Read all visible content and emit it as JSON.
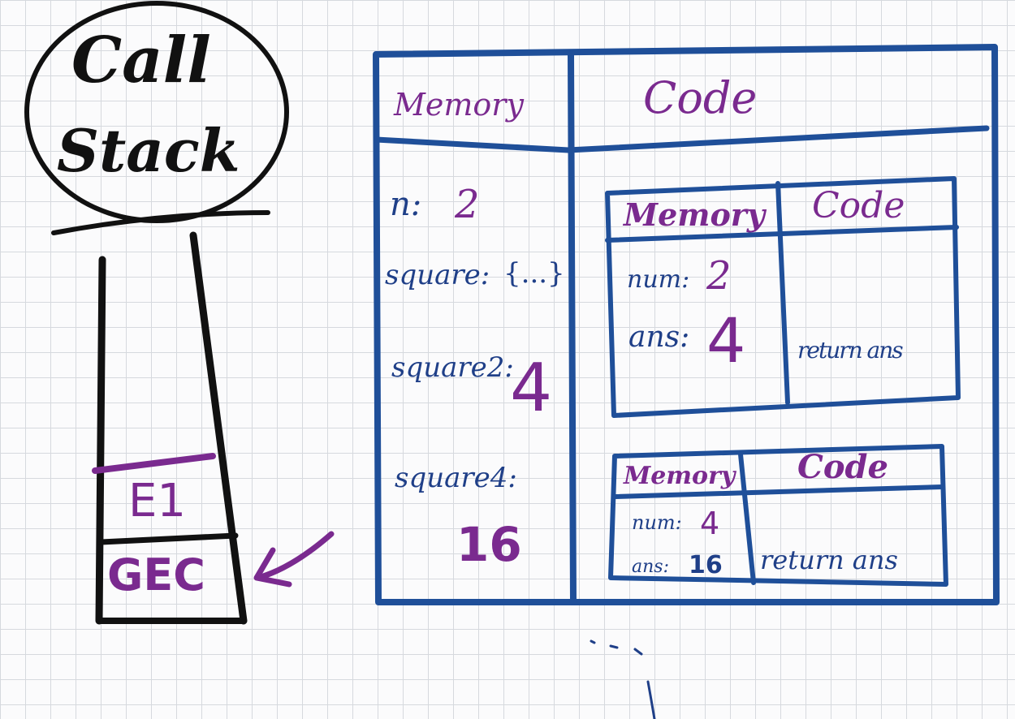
{
  "colors": {
    "ink_black": "#111111",
    "ink_blue": "#1f4f99",
    "ink_purple": "#7a2a8f",
    "grid": "#d6d9de"
  },
  "call_stack": {
    "title_line1": "Call",
    "title_line2": "Stack",
    "frames": [
      "E1",
      "GEC"
    ]
  },
  "global_ec": {
    "memory_header": "Memory",
    "code_header": "Code",
    "memory": {
      "n_label": "n:",
      "n_value": "2",
      "square_label": "square:",
      "square_value": "{...}",
      "square2_label": "square2:",
      "square2_value": "4",
      "square4_label": "square4:",
      "square4_value": "16"
    }
  },
  "ec_square2": {
    "memory_header": "Memory",
    "code_header": "Code",
    "num_label": "num:",
    "num_value": "2",
    "ans_label": "ans:",
    "ans_value": "4",
    "code_line": "return ans"
  },
  "ec_square4": {
    "memory_header": "Memory",
    "code_header": "Code",
    "num_label": "num:",
    "num_value": "4",
    "ans_label": "ans:",
    "ans_value": "16",
    "code_line": "return ans"
  }
}
